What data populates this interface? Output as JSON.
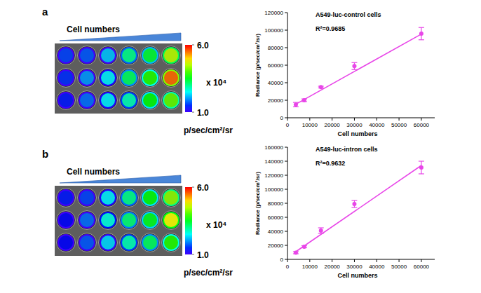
{
  "chart_data": [
    {
      "type": "heatmap",
      "panel_label": "a",
      "x_label": "Cell numbers",
      "cells": [
        [
          1.6,
          1.7,
          2.2,
          3.0,
          3.4,
          4.5
        ],
        [
          1.5,
          2.0,
          2.4,
          3.2,
          3.8,
          5.5
        ],
        [
          1.4,
          1.8,
          2.4,
          2.8,
          3.6,
          4.1
        ]
      ],
      "colorbar_range": [
        1.0,
        6.0
      ],
      "colorbar_ticks": [
        {
          "value": 1.0,
          "label": "1.0"
        },
        {
          "value": 6.0,
          "label": "6.0"
        }
      ],
      "colorbar_multiplier": "x 10⁴",
      "colorbar_unit": "p/sec/cm²/sr"
    },
    {
      "type": "scatter",
      "title": "A549-luc-control cells",
      "annotations": [
        "R²=0.9685"
      ],
      "x_label": "Cell numbers",
      "y_label": "Radiance (p/sec/cm²/sr)",
      "xlim": [
        0,
        66000
      ],
      "xticks": [
        0,
        10000,
        20000,
        30000,
        40000,
        50000,
        60000
      ],
      "ylim": [
        0,
        120000
      ],
      "yticks": [
        0,
        20000,
        40000,
        60000,
        80000,
        100000,
        120000
      ],
      "series": [
        {
          "type": "scatter",
          "color": "#e846e8",
          "marker": "circle",
          "x": [
            3750,
            7500,
            15000,
            30000,
            60000
          ],
          "values": [
            15000,
            20000,
            35000,
            59000,
            96000
          ],
          "errors": [
            2500,
            1500,
            1000,
            4000,
            7000
          ]
        },
        {
          "type": "line",
          "color": "#e846e8",
          "line_style": "solid",
          "x": [
            3750,
            60000
          ],
          "values": [
            15500,
            95500
          ]
        }
      ]
    },
    {
      "type": "heatmap",
      "panel_label": "b",
      "x_label": "Cell numbers",
      "cells": [
        [
          1.4,
          1.6,
          2.4,
          3.0,
          3.6,
          4.3
        ],
        [
          1.3,
          1.8,
          2.6,
          3.1,
          3.5,
          4.8
        ],
        [
          1.3,
          1.7,
          2.3,
          2.8,
          3.2,
          3.8
        ]
      ],
      "colorbar_range": [
        1.0,
        6.0
      ],
      "colorbar_ticks": [
        {
          "value": 1.0,
          "label": "1.0"
        },
        {
          "value": 6.0,
          "label": "6.0"
        }
      ],
      "colorbar_multiplier": "x 10⁴",
      "colorbar_unit": "p/sec/cm²/sr"
    },
    {
      "type": "scatter",
      "title": "A549-luc-intron cells",
      "annotations": [
        "R²=0.9632"
      ],
      "x_label": "Cell numbers",
      "y_label": "Radiance (p/sec/cm²/sr)",
      "xlim": [
        0,
        66000
      ],
      "xticks": [
        0,
        10000,
        20000,
        30000,
        40000,
        50000,
        60000
      ],
      "ylim": [
        0,
        160000
      ],
      "yticks": [
        0,
        20000,
        40000,
        60000,
        80000,
        100000,
        120000,
        140000,
        160000
      ],
      "series": [
        {
          "type": "scatter",
          "color": "#e846e8",
          "marker": "circle",
          "x": [
            3750,
            7500,
            15000,
            30000,
            60000
          ],
          "values": [
            9500,
            18000,
            41000,
            79000,
            131000
          ],
          "errors": [
            1500,
            1500,
            4000,
            5000,
            9000
          ]
        },
        {
          "type": "line",
          "color": "#e846e8",
          "line_style": "solid",
          "x": [
            3750,
            60000
          ],
          "values": [
            11000,
            134000
          ]
        }
      ]
    }
  ]
}
